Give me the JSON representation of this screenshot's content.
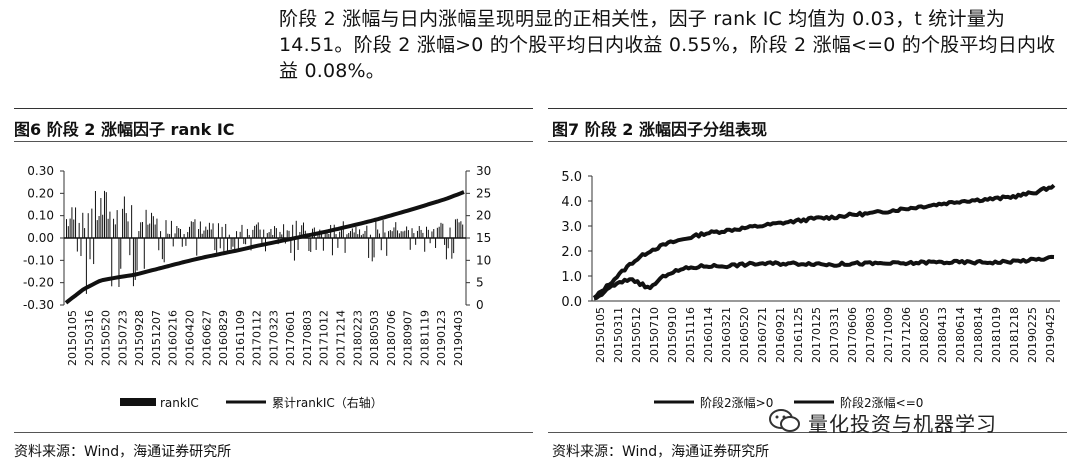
{
  "paragraph": {
    "line1": "阶段 2 涨幅与日内涨幅呈现明显的正相关性，因子 rank IC 均值为 0.03，t 统计量为",
    "line2": "14.51。阶段 2 涨幅>0 的个股平均日内收益 0.55%，阶段 2 涨幅<=0 的个股平均日内收",
    "line3": "益 0.08%。"
  },
  "figures": {
    "fig6": {
      "title": "图6  阶段 2 涨幅因子 rank IC",
      "source": "资料来源：Wind，海通证券研究所"
    },
    "fig7": {
      "title": "图7  阶段 2 涨幅因子分组表现",
      "source": "资料来源：Wind，海通证券研究所"
    }
  },
  "chart_data": [
    {
      "type": "bar",
      "categories": [
        "20150105",
        "20150316",
        "20150520",
        "20150723",
        "20150928",
        "20151207",
        "20160216",
        "20160420",
        "20160627",
        "20160829",
        "20161109",
        "20170112",
        "20170323",
        "20170601",
        "20170803",
        "20171012",
        "20171214",
        "20180223",
        "20180503",
        "20180706",
        "20180907",
        "20181119",
        "20190123",
        "20190403"
      ],
      "series": [
        {
          "name": "rankIC",
          "axis": "left",
          "values": [
            0.12,
            0.18,
            0.2,
            0.22,
            0.15,
            0.1,
            0.08,
            0.09,
            0.07,
            0.06,
            0.05,
            0.07,
            0.06,
            0.08,
            0.06,
            0.05,
            0.07,
            0.06,
            0.08,
            0.07,
            0.05,
            0.06,
            0.08,
            0.1
          ]
        },
        {
          "name": "累计rankIC（右轴）",
          "type": "line",
          "axis": "right",
          "values": [
            0.5,
            3.5,
            5.5,
            6.2,
            6.8,
            7.8,
            8.8,
            9.8,
            10.7,
            11.5,
            12.3,
            13.2,
            14.0,
            14.8,
            15.6,
            16.4,
            17.3,
            18.2,
            19.2,
            20.3,
            21.4,
            22.6,
            23.8,
            25.3
          ]
        }
      ],
      "left_ticks": [
        "0.30",
        "0.20",
        "0.10",
        "0.00",
        "-0.10",
        "-0.20",
        "-0.30"
      ],
      "right_ticks": [
        "30",
        "25",
        "20",
        "15",
        "10",
        "5",
        "0"
      ],
      "ylim": [
        -0.3,
        0.3
      ],
      "y2lim": [
        0,
        30
      ],
      "legend": "bottom"
    },
    {
      "type": "line",
      "categories": [
        "20150105",
        "20150311",
        "20150512",
        "20150710",
        "20150910",
        "20151116",
        "20160114",
        "20160321",
        "20160520",
        "20160721",
        "20160921",
        "20161125",
        "20170125",
        "20170331",
        "20170606",
        "20170803",
        "20171009",
        "20171206",
        "20180205",
        "20180413",
        "20180614",
        "20180814",
        "20181019",
        "20181218",
        "20190225",
        "20190425"
      ],
      "series": [
        {
          "name": "阶段2涨幅>0",
          "values": [
            0.1,
            0.8,
            1.5,
            2.0,
            2.3,
            2.5,
            2.7,
            2.8,
            2.9,
            3.0,
            3.1,
            3.2,
            3.3,
            3.35,
            3.45,
            3.5,
            3.6,
            3.7,
            3.8,
            3.9,
            4.0,
            4.05,
            4.1,
            4.2,
            4.35,
            4.6
          ]
        },
        {
          "name": "阶段2涨幅<=0",
          "values": [
            0.05,
            0.6,
            0.9,
            0.5,
            1.1,
            1.3,
            1.4,
            1.4,
            1.45,
            1.5,
            1.5,
            1.5,
            1.5,
            1.45,
            1.5,
            1.5,
            1.5,
            1.5,
            1.55,
            1.55,
            1.55,
            1.55,
            1.55,
            1.6,
            1.65,
            1.75
          ]
        }
      ],
      "y_ticks": [
        "5.0",
        "4.0",
        "3.0",
        "2.0",
        "1.0",
        "0.0"
      ],
      "ylim": [
        0,
        5
      ],
      "legend": "bottom"
    }
  ],
  "watermark": {
    "text": "量化投资与机器学习"
  }
}
